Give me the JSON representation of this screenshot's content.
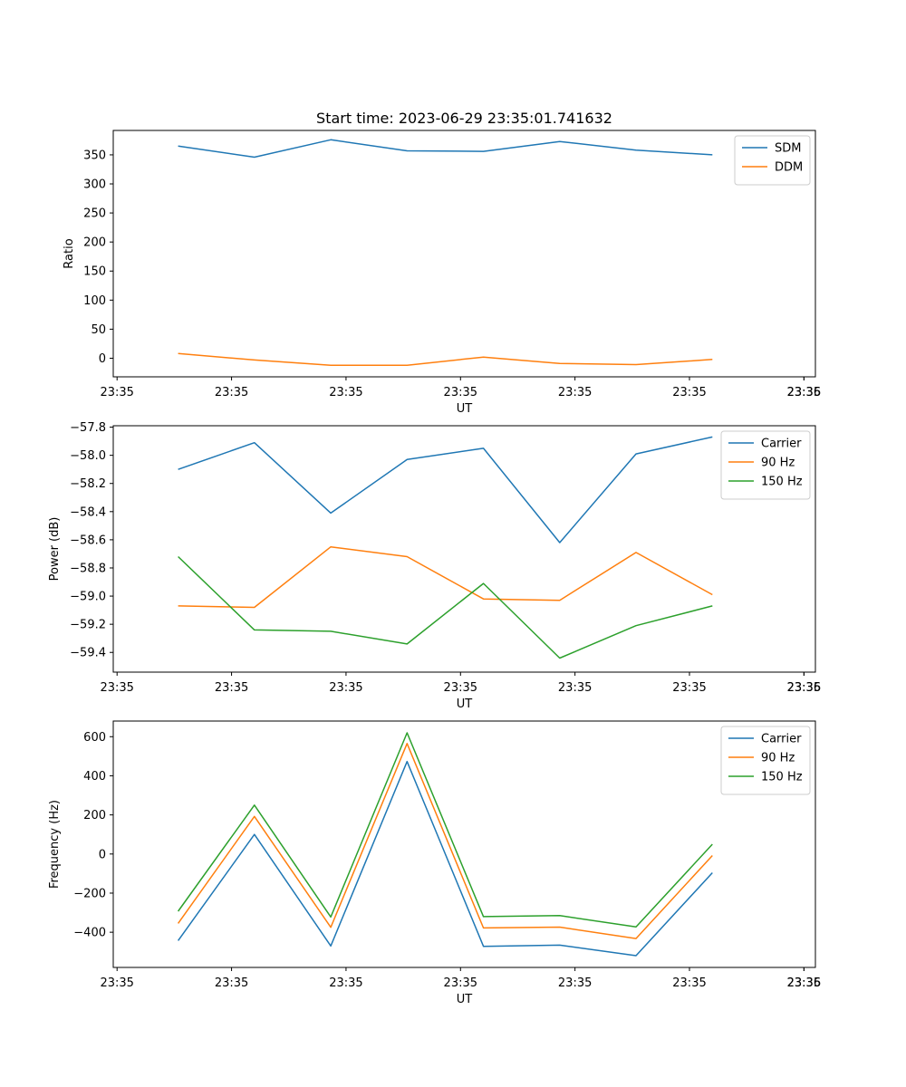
{
  "figure_title": "Start time: 2023-06-29 23:35:01.741632",
  "chart_data": [
    {
      "type": "line",
      "title": "Start time: 2023-06-29 23:35:01.741632",
      "xlabel": "UT",
      "ylabel": "Ratio",
      "x_tick_labels": [
        "23:35",
        "23:35",
        "23:35",
        "23:35",
        "23:35",
        "23:35",
        "23:35"
      ],
      "x_last_tick_label": "23:36",
      "yticks": [
        0,
        50,
        100,
        150,
        200,
        250,
        300,
        350
      ],
      "ylim": [
        -32,
        392
      ],
      "x": [
        1,
        2,
        3,
        4,
        5,
        6,
        7,
        8
      ],
      "xlim": [
        0.15,
        9.35
      ],
      "legend_position": "upper-right",
      "grid": false,
      "series": [
        {
          "name": "SDM",
          "color": "#1f77b4",
          "values": [
            365,
            346,
            376,
            357,
            356,
            373,
            358,
            350
          ]
        },
        {
          "name": "DDM",
          "color": "#ff7f0e",
          "values": [
            8,
            -3,
            -12,
            -12,
            2,
            -9,
            -11,
            -2
          ]
        }
      ]
    },
    {
      "type": "line",
      "title": "",
      "xlabel": "UT",
      "ylabel": "Power (dB)",
      "x_tick_labels": [
        "23:35",
        "23:35",
        "23:35",
        "23:35",
        "23:35",
        "23:35",
        "23:35"
      ],
      "x_last_tick_label": "23:36",
      "yticks": [
        -59.4,
        -59.2,
        -59.0,
        -58.8,
        -58.6,
        -58.4,
        -58.2,
        -58.0,
        -57.8
      ],
      "ylim": [
        -59.54,
        -57.79
      ],
      "x": [
        1,
        2,
        3,
        4,
        5,
        6,
        7,
        8
      ],
      "xlim": [
        0.15,
        9.35
      ],
      "legend_position": "upper-right",
      "grid": false,
      "series": [
        {
          "name": "Carrier",
          "color": "#1f77b4",
          "values": [
            -58.1,
            -57.91,
            -58.41,
            -58.03,
            -57.95,
            -58.62,
            -57.99,
            -57.87
          ]
        },
        {
          "name": "90 Hz",
          "color": "#ff7f0e",
          "values": [
            -59.07,
            -59.08,
            -58.65,
            -58.72,
            -59.02,
            -59.03,
            -58.69,
            -58.99
          ]
        },
        {
          "name": "150 Hz",
          "color": "#2ca02c",
          "values": [
            -58.72,
            -59.24,
            -59.25,
            -59.34,
            -58.91,
            -59.44,
            -59.21,
            -59.07
          ]
        }
      ]
    },
    {
      "type": "line",
      "title": "",
      "xlabel": "UT",
      "ylabel": "Frequency (Hz)",
      "x_tick_labels": [
        "23:35",
        "23:35",
        "23:35",
        "23:35",
        "23:35",
        "23:35",
        "23:35"
      ],
      "x_last_tick_label": "23:36",
      "yticks": [
        -400,
        -200,
        0,
        200,
        400,
        600
      ],
      "ylim": [
        -580,
        680
      ],
      "x": [
        1,
        2,
        3,
        4,
        5,
        6,
        7,
        8
      ],
      "xlim": [
        0.15,
        9.35
      ],
      "legend_position": "upper-right",
      "grid": false,
      "series": [
        {
          "name": "Carrier",
          "color": "#1f77b4",
          "values": [
            -443,
            100,
            -470,
            473,
            -472,
            -466,
            -520,
            -96
          ]
        },
        {
          "name": "90 Hz",
          "color": "#ff7f0e",
          "values": [
            -355,
            192,
            -375,
            565,
            -378,
            -374,
            -432,
            -8
          ]
        },
        {
          "name": "150 Hz",
          "color": "#2ca02c",
          "values": [
            -293,
            250,
            -322,
            620,
            -320,
            -315,
            -373,
            50
          ]
        }
      ]
    }
  ]
}
